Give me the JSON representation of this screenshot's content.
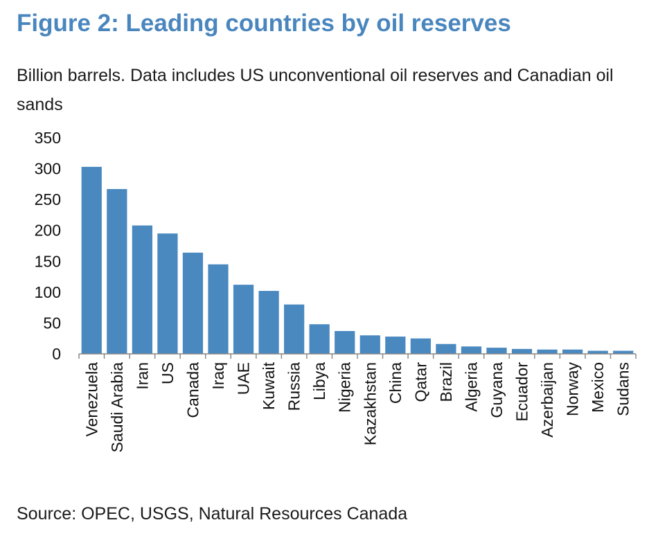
{
  "figure": {
    "title": "Figure 2: Leading countries by oil reserves",
    "subtitle": "Billion barrels. Data includes US unconventional oil reserves and Canadian oil sands",
    "source": "Source: OPEC, USGS, Natural Resources Canada"
  },
  "colors": {
    "bar": "#4a89c0",
    "axis": "#888888",
    "title": "#4a86be"
  },
  "chart_data": {
    "type": "bar",
    "title": "",
    "xlabel": "",
    "ylabel": "",
    "ylim": [
      0,
      350
    ],
    "yticks": [
      0,
      50,
      100,
      150,
      200,
      250,
      300,
      350
    ],
    "grid": false,
    "legend": "none",
    "categories": [
      "Venezuela",
      "Saudi Arabia",
      "Iran",
      "US",
      "Canada",
      "Iraq",
      "UAE",
      "Kuwait",
      "Russia",
      "Libya",
      "Nigeria",
      "Kazakhstan",
      "China",
      "Qatar",
      "Brazil",
      "Algeria",
      "Guyana",
      "Ecuador",
      "Azerbaijan",
      "Norway",
      "Mexico",
      "Sudans"
    ],
    "values": [
      303,
      267,
      208,
      195,
      164,
      145,
      112,
      102,
      80,
      48,
      37,
      30,
      28,
      25,
      16,
      12,
      10,
      8,
      7,
      7,
      5,
      5
    ]
  }
}
